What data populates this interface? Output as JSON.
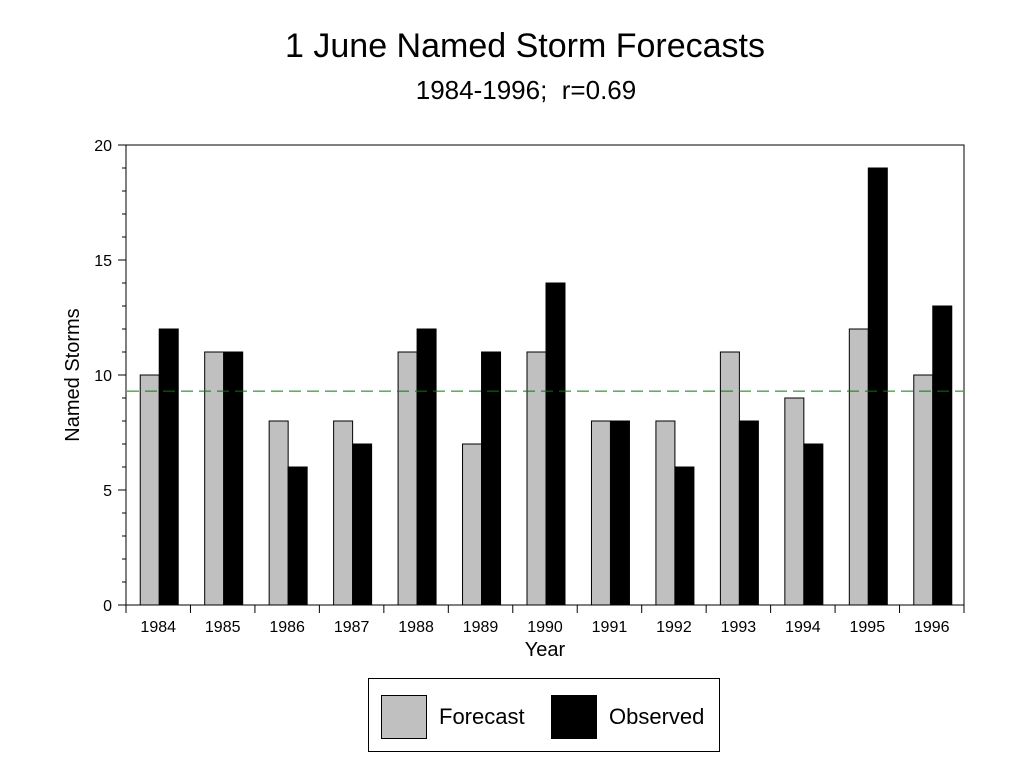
{
  "chart_data": {
    "type": "bar",
    "title": "1 June Named Storm Forecasts",
    "subtitle": "1984-1996;  r=0.69",
    "xlabel": "Year",
    "ylabel": "Named Storms",
    "ylim": [
      0,
      20
    ],
    "yticks": [
      "0",
      "5",
      "10",
      "15",
      "20"
    ],
    "categories": [
      "1984",
      "1985",
      "1986",
      "1987",
      "1988",
      "1989",
      "1990",
      "1991",
      "1992",
      "1993",
      "1994",
      "1995",
      "1996"
    ],
    "series": [
      {
        "name": "Forecast",
        "color": "#c0c0c0",
        "values": [
          10,
          11,
          8,
          8,
          11,
          7,
          11,
          8,
          8,
          11,
          9,
          12,
          10
        ]
      },
      {
        "name": "Observed",
        "color": "#000000",
        "values": [
          12,
          11,
          6,
          7,
          12,
          11,
          14,
          8,
          6,
          8,
          7,
          19,
          13
        ]
      }
    ],
    "reference_line": {
      "value": 9.3,
      "color": "#008000",
      "style": "dashed"
    },
    "legend_position": "bottom-center",
    "grid": false
  }
}
